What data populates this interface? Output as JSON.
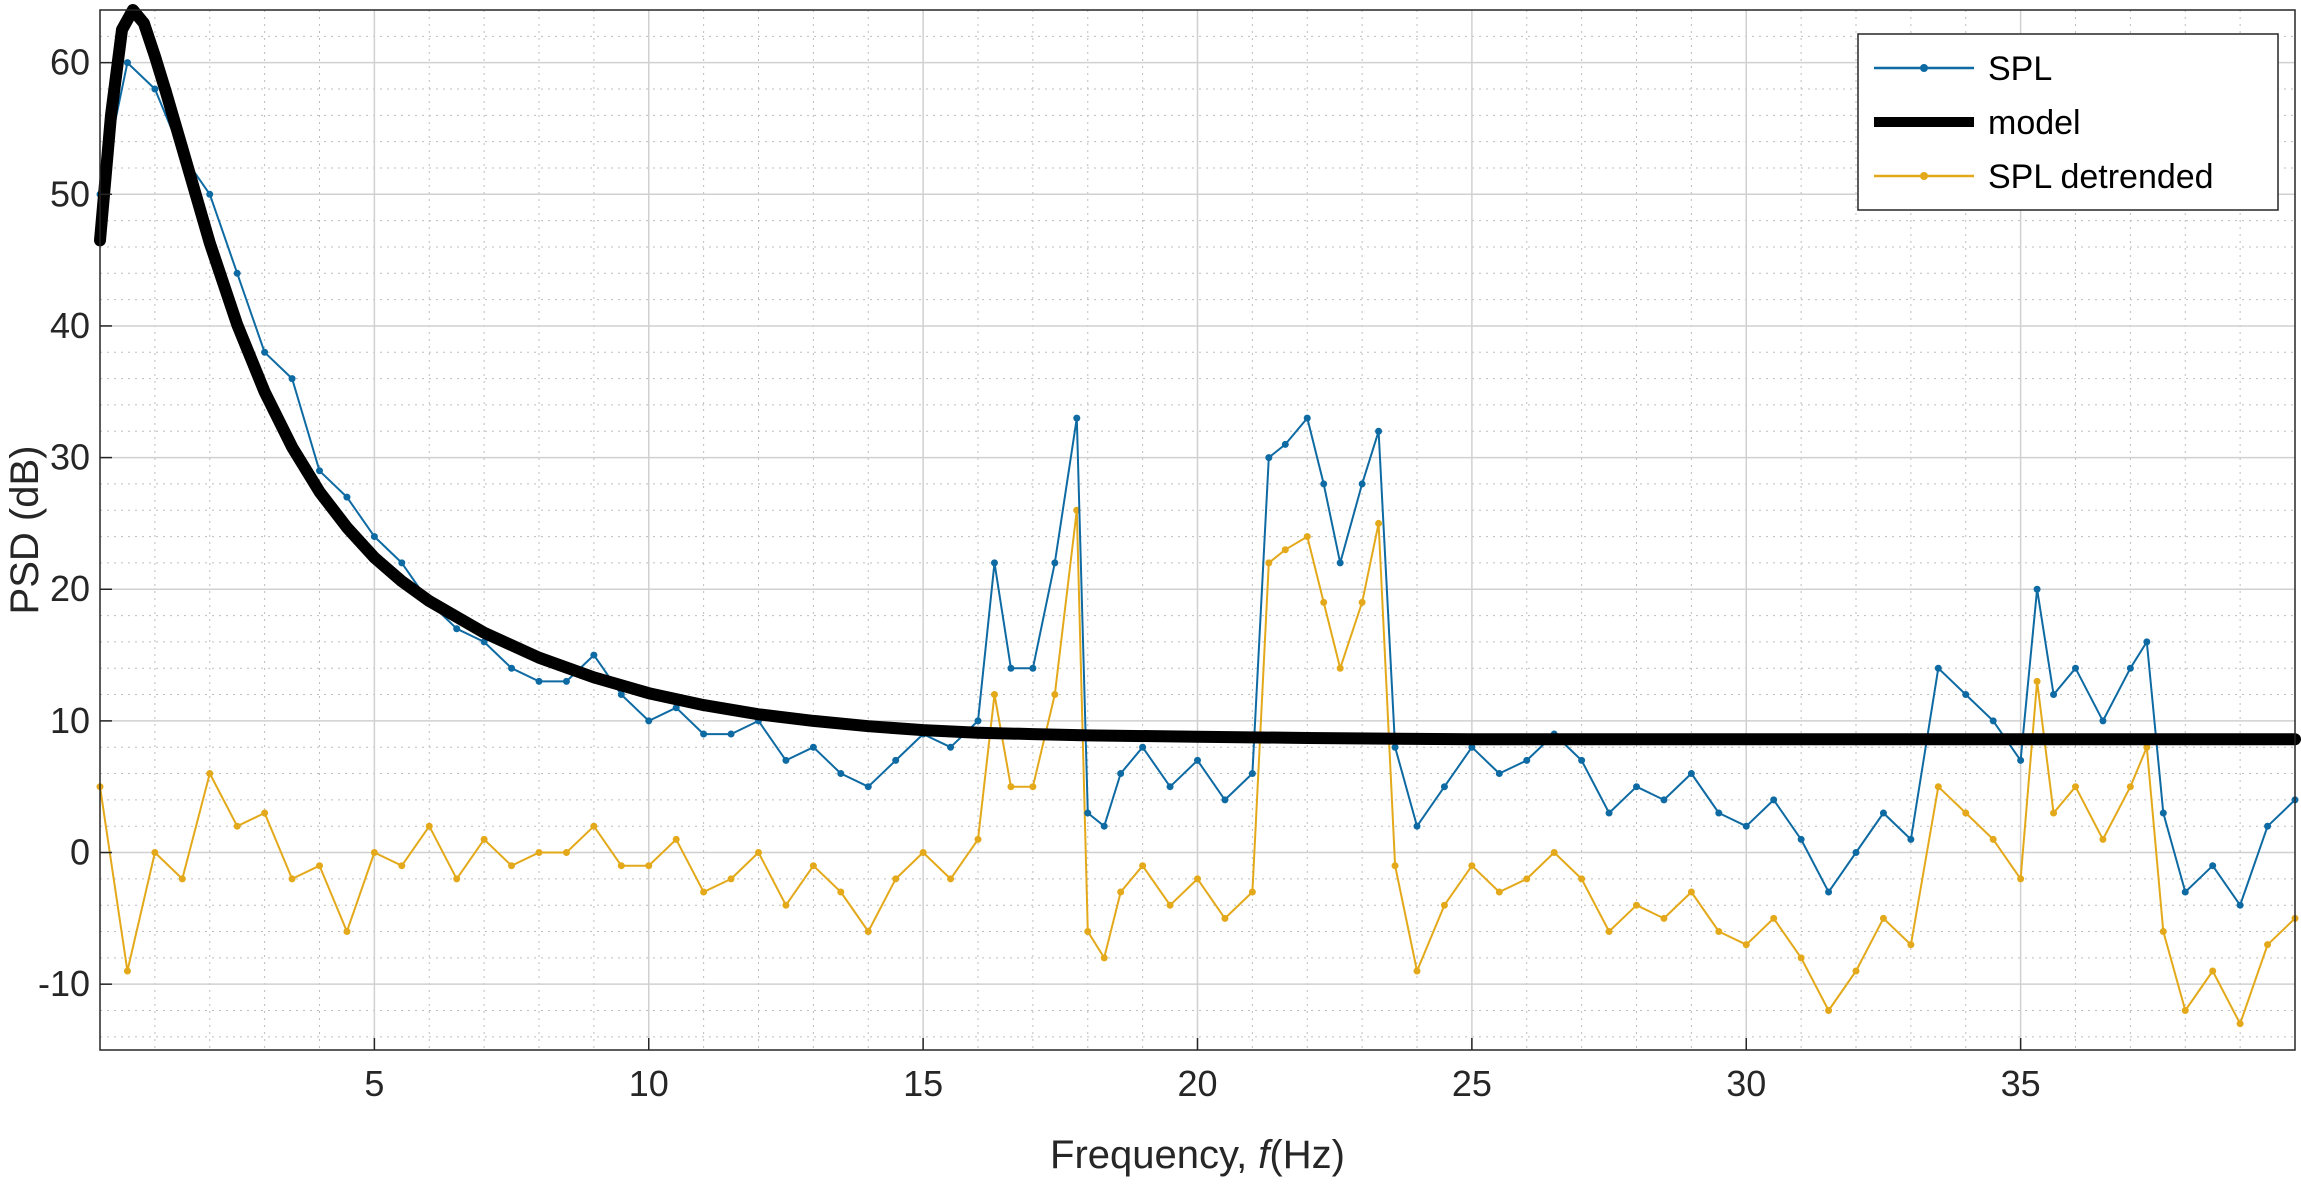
{
  "chart_data": {
    "type": "line",
    "title": "",
    "xlabel_prefix": "Frequency, ",
    "xlabel_var": "f",
    "xlabel_suffix": "(Hz)",
    "ylabel": "PSD (dB)",
    "xlim": [
      0,
      40
    ],
    "ylim": [
      -15,
      64
    ],
    "xticks": [
      5,
      10,
      15,
      20,
      25,
      30,
      35
    ],
    "yticks": [
      -10,
      0,
      10,
      20,
      30,
      40,
      50,
      60
    ],
    "xtick_labels": [
      "5",
      "10",
      "15",
      "20",
      "25",
      "30",
      "35"
    ],
    "ytick_labels": [
      "-10",
      "0",
      "10",
      "20",
      "30",
      "40",
      "50",
      "60"
    ],
    "minor_x_step": 1,
    "minor_y_step": 2,
    "grid": true,
    "legend_location": "top-right",
    "colors": {
      "spl": "#0E6AA2",
      "model": "#000000",
      "detrended": "#E3A91A"
    },
    "series": [
      {
        "name": "SPL",
        "x": [
          0.0,
          0.5,
          1.0,
          1.5,
          2.0,
          2.5,
          3.0,
          3.5,
          4.0,
          4.5,
          5.0,
          5.5,
          6.0,
          6.5,
          7.0,
          7.5,
          8.0,
          8.5,
          9.0,
          9.5,
          10.0,
          10.5,
          11.0,
          11.5,
          12.0,
          12.5,
          13.0,
          13.5,
          14.0,
          14.5,
          15.0,
          15.5,
          16.0,
          16.3,
          16.6,
          17.0,
          17.4,
          17.8,
          18.0,
          18.3,
          18.6,
          19.0,
          19.5,
          20.0,
          20.5,
          21.0,
          21.3,
          21.6,
          22.0,
          22.3,
          22.6,
          23.0,
          23.3,
          23.6,
          24.0,
          24.5,
          25.0,
          25.5,
          26.0,
          26.5,
          27.0,
          27.5,
          28.0,
          28.5,
          29.0,
          29.5,
          30.0,
          30.5,
          31.0,
          31.5,
          32.0,
          32.5,
          33.0,
          33.5,
          34.0,
          34.5,
          35.0,
          35.3,
          35.6,
          36.0,
          36.5,
          37.0,
          37.3,
          37.6,
          38.0,
          38.5,
          39.0,
          39.5,
          40.0
        ],
        "values": [
          50,
          60,
          58,
          53,
          50,
          44,
          38,
          36,
          29,
          27,
          24,
          22,
          19,
          17,
          16,
          14,
          13,
          13,
          15,
          12,
          10,
          11,
          9,
          9,
          10,
          7,
          8,
          6,
          5,
          7,
          9,
          8,
          10,
          22,
          14,
          14,
          22,
          33,
          3,
          2,
          6,
          8,
          5,
          7,
          4,
          6,
          30,
          31,
          33,
          28,
          22,
          28,
          32,
          8,
          2,
          5,
          8,
          6,
          7,
          9,
          7,
          3,
          5,
          4,
          6,
          3,
          2,
          4,
          1,
          -3,
          0,
          3,
          1,
          14,
          12,
          10,
          7,
          20,
          12,
          14,
          10,
          14,
          16,
          3,
          -3,
          -1,
          -4,
          2,
          4
        ]
      },
      {
        "name": "model",
        "x": [
          0.0,
          0.2,
          0.4,
          0.6,
          0.8,
          1.0,
          1.2,
          1.5,
          2.0,
          2.5,
          3.0,
          3.5,
          4.0,
          4.5,
          5.0,
          5.5,
          6.0,
          7.0,
          8.0,
          9.0,
          10.0,
          11.0,
          12.0,
          13.0,
          14.0,
          15.0,
          16.0,
          17.0,
          18.0,
          20.0,
          22.0,
          25.0,
          30.0,
          35.0,
          40.0
        ],
        "values": [
          46.5,
          56.0,
          62.5,
          64.0,
          63.0,
          60.5,
          57.8,
          53.5,
          46.3,
          40.1,
          35.0,
          30.8,
          27.4,
          24.7,
          22.4,
          20.6,
          19.1,
          16.7,
          14.8,
          13.3,
          12.1,
          11.2,
          10.5,
          10.0,
          9.6,
          9.3,
          9.1,
          9.0,
          8.9,
          8.8,
          8.7,
          8.6,
          8.6,
          8.6,
          8.6
        ]
      },
      {
        "name": "SPL detrended",
        "x": [
          0.0,
          0.5,
          1.0,
          1.5,
          2.0,
          2.5,
          3.0,
          3.5,
          4.0,
          4.5,
          5.0,
          5.5,
          6.0,
          6.5,
          7.0,
          7.5,
          8.0,
          8.5,
          9.0,
          9.5,
          10.0,
          10.5,
          11.0,
          11.5,
          12.0,
          12.5,
          13.0,
          13.5,
          14.0,
          14.5,
          15.0,
          15.5,
          16.0,
          16.3,
          16.6,
          17.0,
          17.4,
          17.8,
          18.0,
          18.3,
          18.6,
          19.0,
          19.5,
          20.0,
          20.5,
          21.0,
          21.3,
          21.6,
          22.0,
          22.3,
          22.6,
          23.0,
          23.3,
          23.6,
          24.0,
          24.5,
          25.0,
          25.5,
          26.0,
          26.5,
          27.0,
          27.5,
          28.0,
          28.5,
          29.0,
          29.5,
          30.0,
          30.5,
          31.0,
          31.5,
          32.0,
          32.5,
          33.0,
          33.5,
          34.0,
          34.5,
          35.0,
          35.3,
          35.6,
          36.0,
          36.5,
          37.0,
          37.3,
          37.6,
          38.0,
          38.5,
          39.0,
          39.5,
          40.0
        ],
        "values": [
          5,
          -9,
          0,
          -2,
          6,
          2,
          3,
          -2,
          -1,
          -6,
          0,
          -1,
          2,
          -2,
          1,
          -1,
          0,
          0,
          2,
          -1,
          -1,
          1,
          -3,
          -2,
          0,
          -4,
          -1,
          -3,
          -6,
          -2,
          0,
          -2,
          1,
          12,
          5,
          5,
          12,
          26,
          -6,
          -8,
          -3,
          -1,
          -4,
          -2,
          -5,
          -3,
          22,
          23,
          24,
          19,
          14,
          19,
          25,
          -1,
          -9,
          -4,
          -1,
          -3,
          -2,
          0,
          -2,
          -6,
          -4,
          -5,
          -3,
          -6,
          -7,
          -5,
          -8,
          -12,
          -9,
          -5,
          -7,
          5,
          3,
          1,
          -2,
          13,
          3,
          5,
          1,
          5,
          8,
          -6,
          -12,
          -9,
          -13,
          -7,
          -5
        ]
      }
    ]
  }
}
